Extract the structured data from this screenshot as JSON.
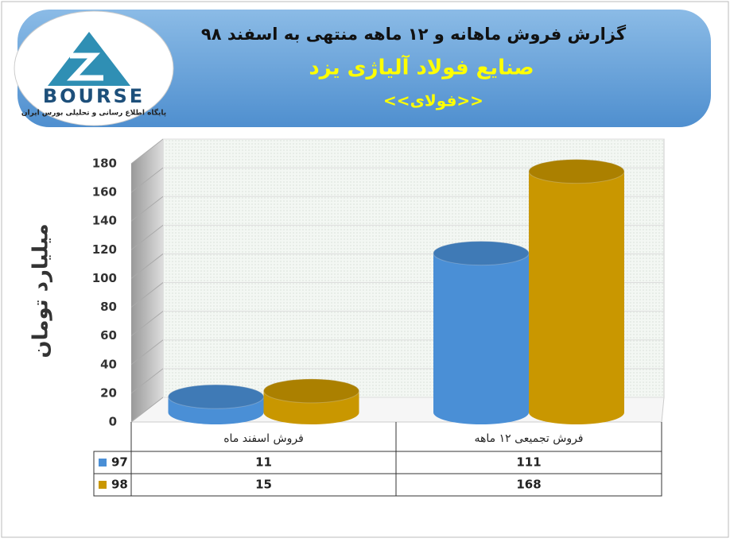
{
  "logo": {
    "text": "BOURSE",
    "tagline": "پایگاه اطلاع رسانی و تحلیلی بورس ایران"
  },
  "chart_data": {
    "type": "bar",
    "title": "گزارش فروش ماهانه و ۱۲ ماهه منتهی به اسفند ۹۸",
    "subtitle": "صنایع فولاد آلیاژی یزد",
    "annotation": "<<فولای>>",
    "y_label": "میلیارد تومان",
    "categories": [
      "فروش اسفند  ماه",
      "فروش تجمیعی ۱۲ ماهه"
    ],
    "series": [
      {
        "name": "97",
        "color": "#4a8fd6",
        "values": [
          11,
          111
        ]
      },
      {
        "name": "98",
        "color": "#c99700",
        "values": [
          15,
          168
        ]
      }
    ],
    "ylim": [
      0,
      180
    ],
    "yticks": [
      0,
      20,
      40,
      60,
      80,
      100,
      120,
      140,
      160,
      180
    ],
    "grid": true
  }
}
